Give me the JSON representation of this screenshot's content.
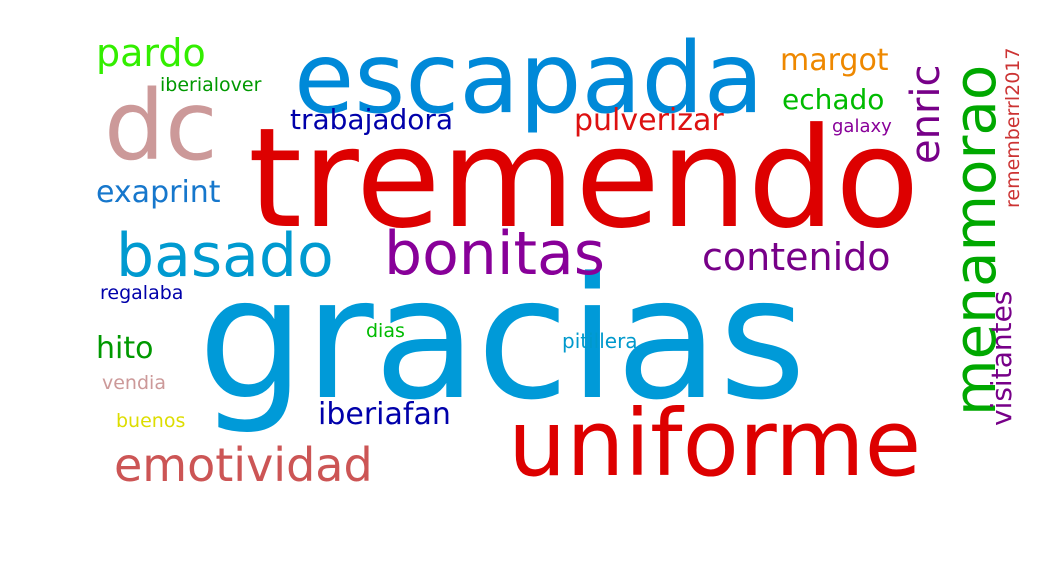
{
  "words": {
    "gracias": {
      "text": "gracias",
      "color": "#009ad8"
    },
    "tremendo": {
      "text": "tremendo",
      "color": "#dd0000"
    },
    "escapada": {
      "text": "escapada",
      "color": "#0089d8"
    },
    "uniforme": {
      "text": "uniforme",
      "color": "#dd0000"
    },
    "dc": {
      "text": "dc",
      "color": "#cc9999"
    },
    "bonitas": {
      "text": "bonitas",
      "color": "#880099"
    },
    "basado": {
      "text": "basado",
      "color": "#009ad0"
    },
    "menamorao": {
      "text": "menamorao",
      "color": "#00a800"
    },
    "emotividad": {
      "text": "emotividad",
      "color": "#cc5555"
    },
    "contenido": {
      "text": "contenido",
      "color": "#770088"
    },
    "pardo": {
      "text": "pardo",
      "color": "#33ee00"
    },
    "enric": {
      "text": "enric",
      "color": "#770088"
    },
    "exaprint": {
      "text": "exaprint",
      "color": "#1677cc"
    },
    "trabajadora": {
      "text": "trabajadora",
      "color": "#0000aa"
    },
    "pulverizar": {
      "text": "pulverizar",
      "color": "#dd1111"
    },
    "margot": {
      "text": "margot",
      "color": "#ee8800"
    },
    "echado": {
      "text": "echado",
      "color": "#00bb00"
    },
    "iberiafan": {
      "text": "iberiafan",
      "color": "#0000aa"
    },
    "visitantes": {
      "text": "visitantes",
      "color": "#770088"
    },
    "hito": {
      "text": "hito",
      "color": "#009900"
    },
    "pitillera": {
      "text": "pitillera",
      "color": "#0099cc"
    },
    "regalaba": {
      "text": "regalaba",
      "color": "#0000aa"
    },
    "iberialover": {
      "text": "iberialover",
      "color": "#009900"
    },
    "galaxy": {
      "text": "galaxy",
      "color": "#880099"
    },
    "rememberrl2017": {
      "text": "rememberrl2017",
      "color": "#cc3333"
    },
    "dias": {
      "text": "dias",
      "color": "#00bb00"
    },
    "vendia": {
      "text": "vendia",
      "color": "#cc9999"
    },
    "buenos": {
      "text": "buenos",
      "color": "#dddd00"
    }
  }
}
